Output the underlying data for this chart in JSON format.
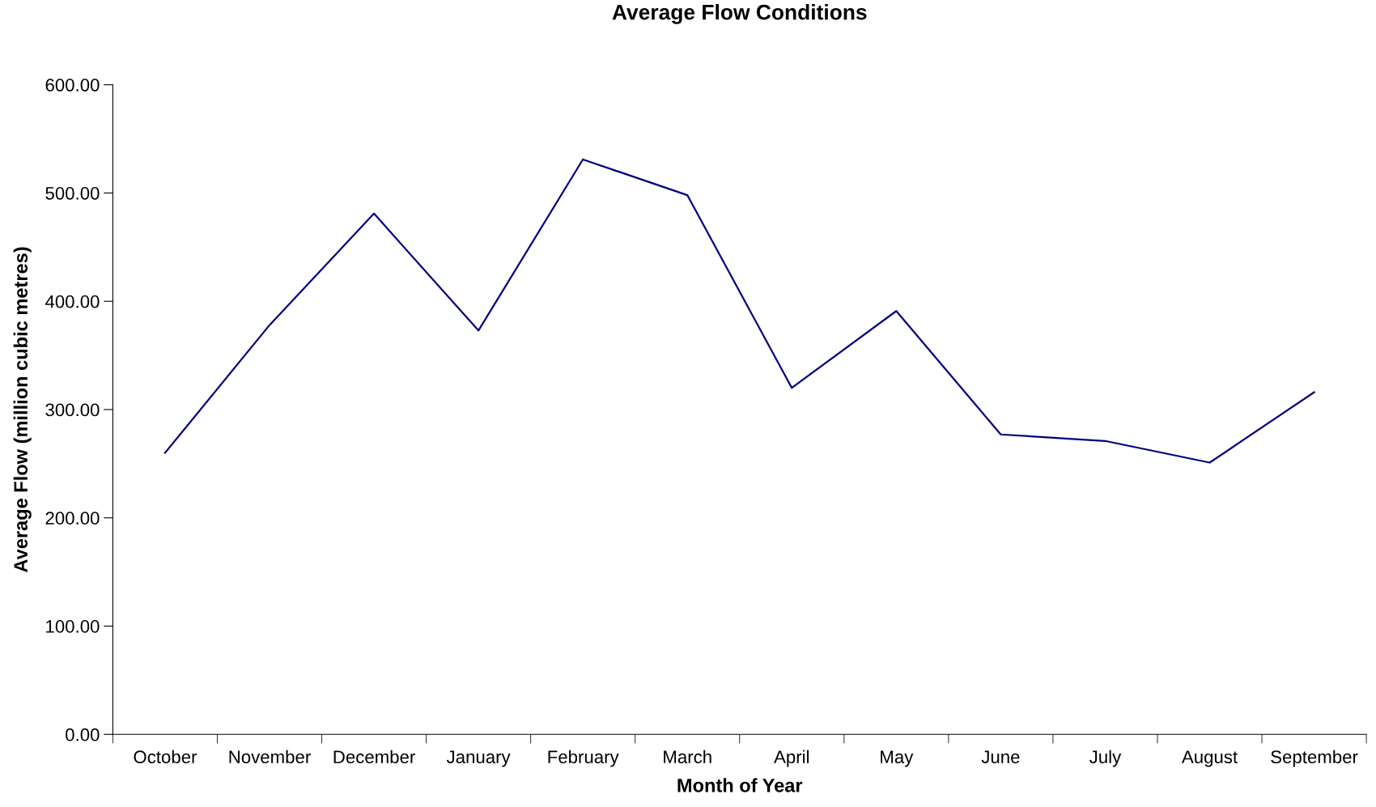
{
  "chart_data": {
    "type": "line",
    "title": "Average Flow Conditions",
    "xlabel": "Month of Year",
    "ylabel": "Average Flow (million cubic metres)",
    "categories": [
      "October",
      "November",
      "December",
      "January",
      "February",
      "March",
      "April",
      "May",
      "June",
      "July",
      "August",
      "September"
    ],
    "series": [
      {
        "color": "#000080",
        "values": [
          260,
          378,
          481,
          373,
          531,
          498,
          320,
          391,
          277,
          271,
          251,
          316
        ]
      }
    ],
    "ylim": [
      0,
      600
    ],
    "yticks": [
      {
        "value": 0,
        "label": "0.00"
      },
      {
        "value": 100,
        "label": "100.00"
      },
      {
        "value": 200,
        "label": "200.00"
      },
      {
        "value": 300,
        "label": "300.00"
      },
      {
        "value": 400,
        "label": "400.00"
      },
      {
        "value": 500,
        "label": "500.00"
      },
      {
        "value": 600,
        "label": "600.00"
      }
    ],
    "grid": false,
    "legend": false,
    "marker": "none",
    "line_style": "solid"
  }
}
